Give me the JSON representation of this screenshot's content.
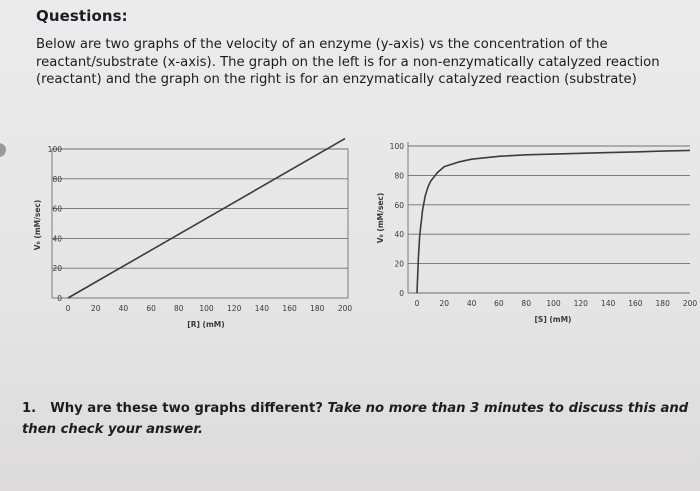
{
  "header": {
    "title": "Questions:",
    "intro": "Below are two graphs of the velocity of an enzyme (y-axis) vs the concentration of the reactant/substrate (x-axis). The graph on the left is for a non-enzymatically catalyzed reaction (reactant) and the graph on the right is for an enzymatically catalyzed reaction (substrate)"
  },
  "question": {
    "number": "1.",
    "text": "Why are these two graphs different? ",
    "emphasis": "Take no more than 3 minutes to discuss this and then check your answer."
  },
  "chart_data": [
    {
      "type": "line",
      "title": "",
      "xlabel": "[R] (mM)",
      "ylabel": "V₀ (mM/sec)",
      "xlim": [
        0,
        200
      ],
      "ylim": [
        0,
        100
      ],
      "xticks": [
        0,
        20,
        40,
        60,
        80,
        100,
        120,
        140,
        160,
        180,
        200
      ],
      "yticks": [
        0,
        20,
        40,
        60,
        80,
        100
      ],
      "grid": "horizontal",
      "series": [
        {
          "x": [
            0,
            200
          ],
          "y": [
            0,
            107
          ]
        }
      ]
    },
    {
      "type": "line",
      "title": "",
      "xlabel": "[S] (mM)",
      "ylabel": "V₀ (mM/sec)",
      "xlim": [
        0,
        200
      ],
      "ylim": [
        0,
        100
      ],
      "xticks": [
        0,
        20,
        40,
        60,
        80,
        100,
        120,
        140,
        160,
        180,
        200
      ],
      "yticks": [
        0,
        20,
        40,
        60,
        80,
        100
      ],
      "grid": "horizontal",
      "series": [
        {
          "x": [
            0,
            1,
            2,
            4,
            6,
            8,
            10,
            15,
            20,
            30,
            40,
            60,
            80,
            100,
            120,
            140,
            160,
            180,
            200
          ],
          "y": [
            0,
            24,
            39,
            56,
            66,
            72,
            76,
            82,
            86,
            89,
            91,
            93,
            94,
            94.5,
            95,
            95.5,
            96,
            96.5,
            97
          ]
        }
      ]
    }
  ]
}
